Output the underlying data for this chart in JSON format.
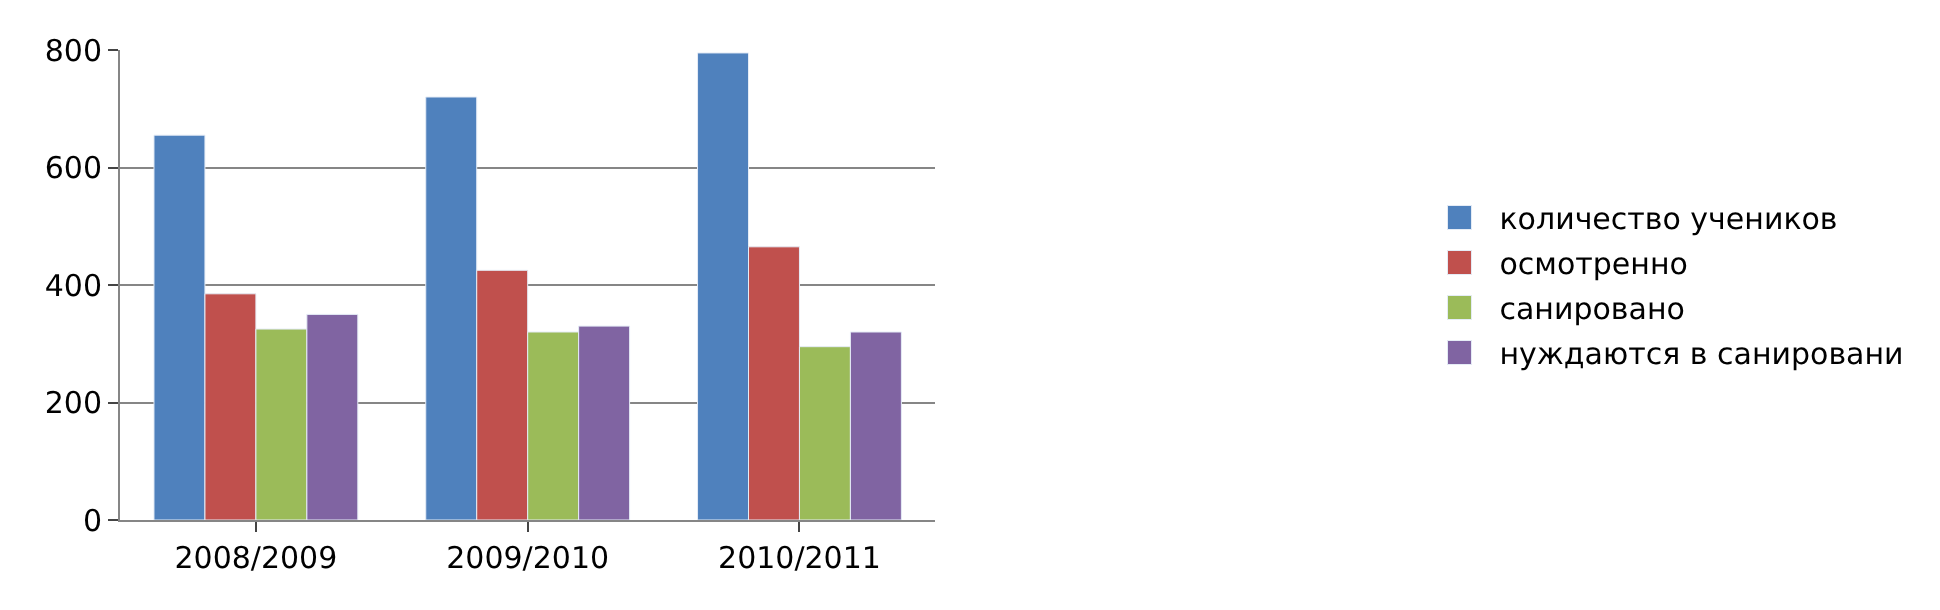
{
  "chart_data": {
    "type": "bar",
    "categories": [
      "2008/2009",
      "2009/2010",
      "2010/2011"
    ],
    "series": [
      {
        "name": "количество учеников",
        "color": "#4f81bd",
        "values": [
          655,
          720,
          795
        ]
      },
      {
        "name": "осмотренно",
        "color": "#c0504d",
        "values": [
          385,
          425,
          465
        ]
      },
      {
        "name": "санировано",
        "color": "#9bbb59",
        "values": [
          325,
          320,
          295
        ]
      },
      {
        "name": "нуждаются в санировани",
        "color": "#8064a2",
        "values": [
          350,
          330,
          320
        ]
      }
    ],
    "ylim": [
      0,
      800
    ],
    "yticks": [
      0,
      200,
      400,
      600,
      800
    ],
    "grid": "y",
    "legend": "right"
  }
}
